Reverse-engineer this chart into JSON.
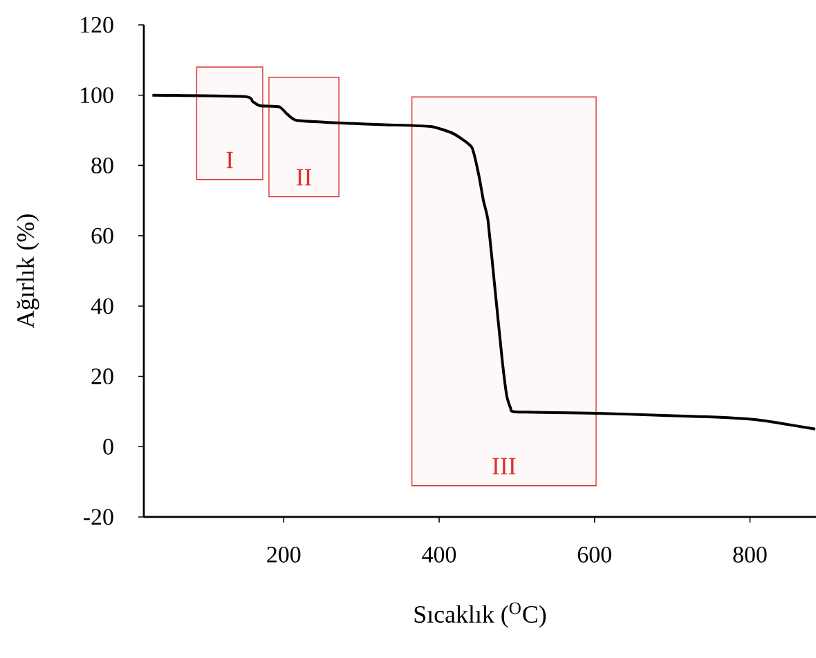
{
  "chart_data": {
    "type": "line",
    "xlabel": "Sıcaklık ($^{O}$C)",
    "ylabel": "Ağırlık (%)",
    "x": [
      31,
      150,
      160,
      169,
      194,
      205,
      217,
      270,
      330,
      389,
      418,
      442,
      451,
      457,
      463,
      472,
      481,
      487,
      492,
      499,
      605,
      688,
      757,
      806,
      841,
      884
    ],
    "series": [
      {
        "color": "#000000",
        "values": [
          100,
          99.6,
          98.2,
          97,
          96.7,
          94.5,
          92.8,
          92.1,
          91.6,
          91.1,
          89.1,
          85.2,
          77.3,
          70,
          64.2,
          44.6,
          25,
          14.5,
          11,
          9.9,
          9.5,
          8.9,
          8.4,
          7.7,
          6.6,
          5
        ]
      }
    ],
    "xlim": [
      20,
      885
    ],
    "ylim": [
      -20,
      120
    ],
    "xticks": [
      200,
      400,
      600,
      800
    ],
    "yticks": [
      -20,
      0,
      20,
      40,
      60,
      80,
      100,
      120
    ],
    "grid": false,
    "marker": "none",
    "line_style": "solid",
    "bands": [
      {
        "axis": "x",
        "from": 88,
        "to": 173,
        "color": "#e03030",
        "label": "I"
      },
      {
        "axis": "x",
        "from": 181,
        "to": 271,
        "color": "#e03030",
        "label": "II"
      },
      {
        "axis": "x",
        "from": 365,
        "to": 602,
        "color": "#e03030",
        "label": "III"
      }
    ]
  }
}
